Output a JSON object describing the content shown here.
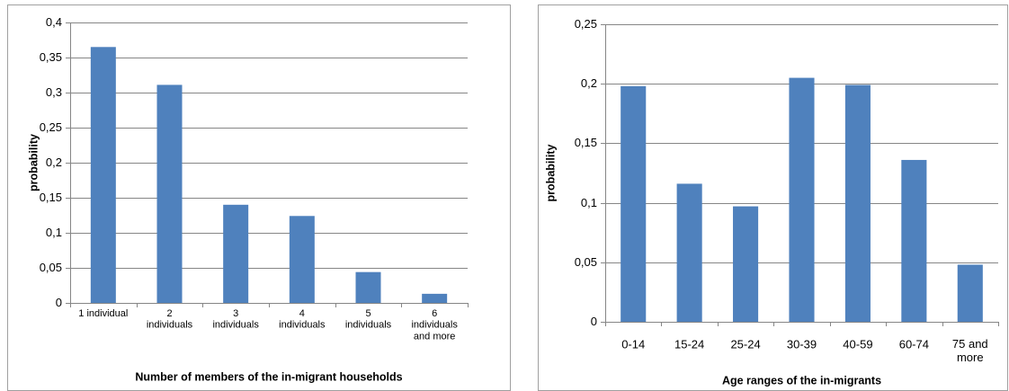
{
  "chart_data": [
    {
      "type": "bar",
      "color": "#4f81bd",
      "grid": true,
      "y_label": "probability",
      "x_label": "Number of members of the in-migrant households",
      "categories": [
        "1 individual",
        "2\nindividuals",
        "3\nindividuals",
        "4\nindividuals",
        "5\nindividuals",
        "6\nindividuals\nand more"
      ],
      "values": [
        0.365,
        0.311,
        0.14,
        0.124,
        0.044,
        0.013
      ],
      "ylim": [
        0,
        0.4
      ],
      "yticks": [
        0,
        {
          "value": 0.05,
          "label": "0,05"
        },
        {
          "value": 0.1,
          "label": "0,1"
        },
        {
          "value": 0.15,
          "label": "0,15"
        },
        {
          "value": 0.2,
          "label": "0,2"
        },
        {
          "value": 0.25,
          "label": "0,25"
        },
        {
          "value": 0.3,
          "label": "0,3"
        },
        {
          "value": 0.35,
          "label": "0,35"
        },
        {
          "value": 0.4,
          "label": "0,4"
        }
      ]
    },
    {
      "type": "bar",
      "color": "#4f81bd",
      "grid": true,
      "y_label": "probability",
      "x_label": "Age ranges of the in-migrants",
      "categories": [
        "0-14",
        "15-24",
        "25-24",
        "30-39",
        "40-59",
        "60-74",
        "75 and\nmore"
      ],
      "values": [
        0.198,
        0.116,
        0.097,
        0.205,
        0.199,
        0.136,
        0.048
      ],
      "ylim": [
        0,
        0.25
      ],
      "yticks": [
        0,
        {
          "value": 0.05,
          "label": "0,05"
        },
        {
          "value": 0.1,
          "label": "0,1"
        },
        {
          "value": 0.15,
          "label": "0,15"
        },
        {
          "value": 0.2,
          "label": "0,2"
        },
        {
          "value": 0.25,
          "label": "0,25"
        }
      ]
    }
  ]
}
